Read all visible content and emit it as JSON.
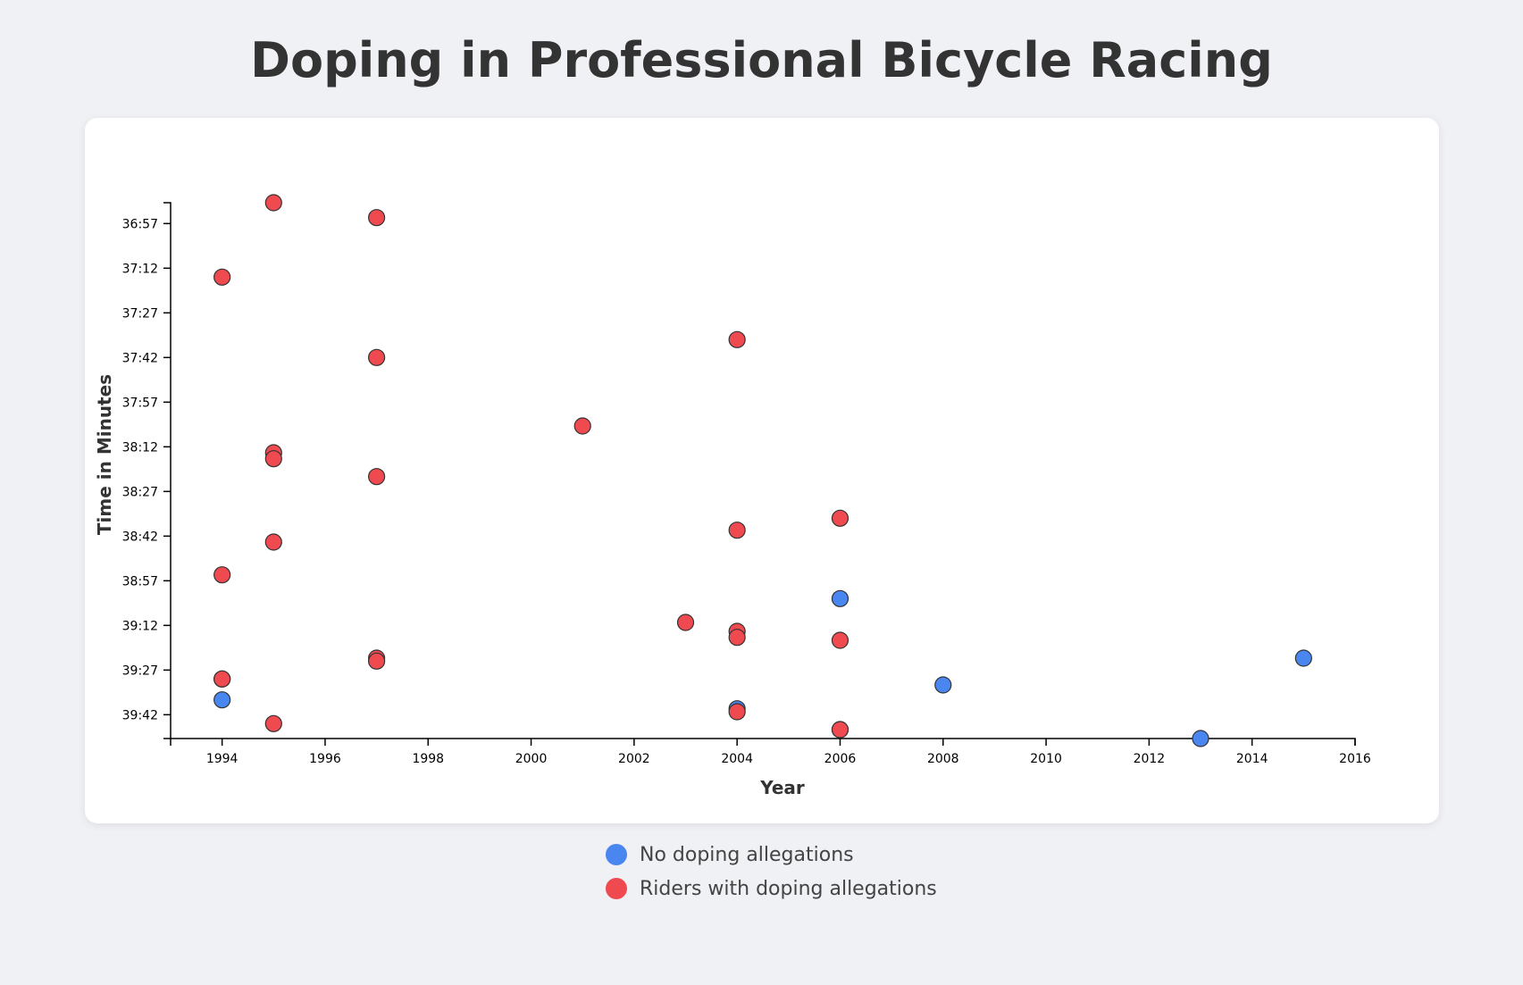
{
  "page": {
    "title": "Doping in Professional Bicycle Racing"
  },
  "legend": {
    "items": [
      {
        "label": "No doping allegations",
        "color": "#4a86f0"
      },
      {
        "label": "Riders with doping allegations",
        "color": "#ef4a50"
      }
    ]
  },
  "colors": {
    "no_doping": "#4a86f0",
    "doping": "#ef4a50",
    "marker_stroke": "#333333",
    "axis": "#000000"
  },
  "chart_data": {
    "type": "scatter",
    "title": "Doping in Professional Bicycle Racing",
    "xlabel": "Year",
    "ylabel": "Time in Minutes",
    "x_ticks": [
      1994,
      1996,
      1998,
      2000,
      2002,
      2004,
      2006,
      2008,
      2010,
      2012,
      2014,
      2016
    ],
    "y_ticks": [
      "36:57",
      "37:12",
      "37:27",
      "37:42",
      "37:57",
      "38:12",
      "38:27",
      "38:42",
      "38:57",
      "39:12",
      "39:27",
      "39:42"
    ],
    "xlim": [
      1993,
      2016
    ],
    "ylim": [
      "36:50",
      "39:50"
    ],
    "y_reversed": true,
    "grid": false,
    "legend_position": "bottom",
    "series": [
      {
        "name": "No doping allegations",
        "color": "#4a86f0",
        "points": [
          {
            "x": 1994,
            "y": "39:37"
          },
          {
            "x": 2004,
            "y": "39:40"
          },
          {
            "x": 2006,
            "y": "39:03"
          },
          {
            "x": 2008,
            "y": "39:32"
          },
          {
            "x": 2013,
            "y": "39:50"
          },
          {
            "x": 2015,
            "y": "39:23"
          }
        ]
      },
      {
        "name": "Riders with doping allegations",
        "color": "#ef4a50",
        "points": [
          {
            "x": 1995,
            "y": "36:50"
          },
          {
            "x": 1997,
            "y": "36:55"
          },
          {
            "x": 1994,
            "y": "37:15"
          },
          {
            "x": 2004,
            "y": "37:36"
          },
          {
            "x": 1997,
            "y": "37:42"
          },
          {
            "x": 2001,
            "y": "38:05"
          },
          {
            "x": 1995,
            "y": "38:14"
          },
          {
            "x": 1995,
            "y": "38:16"
          },
          {
            "x": 1997,
            "y": "38:22"
          },
          {
            "x": 2006,
            "y": "38:36"
          },
          {
            "x": 2004,
            "y": "38:40"
          },
          {
            "x": 1995,
            "y": "38:44"
          },
          {
            "x": 1994,
            "y": "38:55"
          },
          {
            "x": 2003,
            "y": "39:11"
          },
          {
            "x": 2004,
            "y": "39:14"
          },
          {
            "x": 2004,
            "y": "39:16"
          },
          {
            "x": 2006,
            "y": "39:17"
          },
          {
            "x": 1997,
            "y": "39:23"
          },
          {
            "x": 1997,
            "y": "39:24"
          },
          {
            "x": 1994,
            "y": "39:30"
          },
          {
            "x": 1994,
            "y": "39:30"
          },
          {
            "x": 2004,
            "y": "39:41"
          },
          {
            "x": 1995,
            "y": "39:45"
          },
          {
            "x": 2006,
            "y": "39:47"
          },
          {
            "x": 2006,
            "y": "39:47"
          }
        ]
      }
    ]
  }
}
